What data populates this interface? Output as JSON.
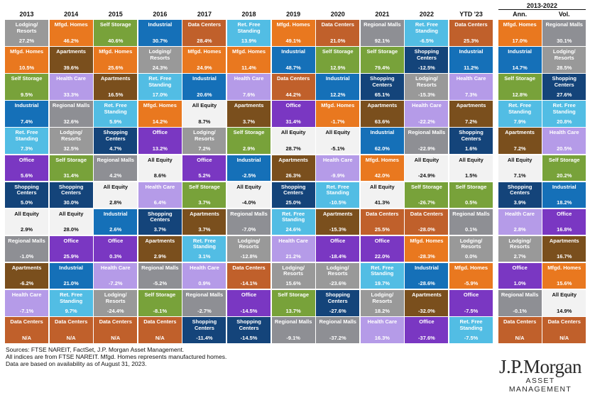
{
  "colors": {
    "Lodging/Resorts": "#1e6fb5",
    "Mfgd. Homes": "#e9781f",
    "Self Storage": "#78a23a",
    "Industrial": "#1570b8",
    "Data Centers": "#c0602b",
    "Ret. Free Standing": "#52bde4",
    "Regional Malls": "#8e8f94",
    "Apartments": "#7a4f1d",
    "Health Care": "#b59be8",
    "Office": "#7a37c2",
    "Shopping Centers": "#14447a",
    "All Equity": "#f2f2f2"
  },
  "chart_data": {
    "type": "table",
    "headers": {
      "columns": [
        "2013",
        "2014",
        "2015",
        "2016",
        "2017",
        "2018",
        "2019",
        "2020",
        "2021",
        "2022",
        "YTD '23",
        "Ann.",
        "Vol."
      ],
      "group_label": "2013-2022"
    },
    "columns": [
      {
        "header": "2013",
        "cells": [
          {
            "name": "Lodging/\nResorts",
            "value": "27.2%"
          },
          {
            "name": "Mfgd. Homes",
            "value": "10.5%"
          },
          {
            "name": "Self Storage",
            "value": "9.5%"
          },
          {
            "name": "Industrial",
            "value": "7.4%"
          },
          {
            "name": "Ret. Free\nStanding",
            "value": "7.3%"
          },
          {
            "name": "Office",
            "value": "5.6%"
          },
          {
            "name": "Shopping\nCenters",
            "value": "5.0%"
          },
          {
            "name": "All Equity",
            "value": "2.9%"
          },
          {
            "name": "Regional Malls",
            "value": "-1.0%"
          },
          {
            "name": "Apartments",
            "value": "-6.2%"
          },
          {
            "name": "Health Care",
            "value": "-7.1%"
          },
          {
            "name": "Data Centers",
            "value": "N/A"
          }
        ]
      },
      {
        "header": "2014",
        "cells": [
          {
            "name": "Mfgd. Homes",
            "value": "46.2%"
          },
          {
            "name": "Apartments",
            "value": "39.6%"
          },
          {
            "name": "Health Care",
            "value": "33.3%"
          },
          {
            "name": "Regional Malls",
            "value": "32.6%"
          },
          {
            "name": "Lodging/\nResorts",
            "value": "32.5%"
          },
          {
            "name": "Self Storage",
            "value": "31.4%"
          },
          {
            "name": "Shopping\nCenters",
            "value": "30.0%"
          },
          {
            "name": "All Equity",
            "value": "28.0%"
          },
          {
            "name": "Office",
            "value": "25.9%"
          },
          {
            "name": "Industrial",
            "value": "21.0%"
          },
          {
            "name": "Ret. Free\nStanding",
            "value": "9.7%"
          },
          {
            "name": "Data Centers",
            "value": "N/A"
          }
        ]
      },
      {
        "header": "2015",
        "cells": [
          {
            "name": "Self Storage",
            "value": "40.6%"
          },
          {
            "name": "Mfgd. Homes",
            "value": "25.6%"
          },
          {
            "name": "Apartments",
            "value": "16.5%"
          },
          {
            "name": "Ret. Free\nStanding",
            "value": "5.9%"
          },
          {
            "name": "Shopping\nCenters",
            "value": "4.7%"
          },
          {
            "name": "Regional Malls",
            "value": "4.2%"
          },
          {
            "name": "All Equity",
            "value": "2.8%"
          },
          {
            "name": "Industrial",
            "value": "2.6%"
          },
          {
            "name": "Office",
            "value": "0.3%"
          },
          {
            "name": "Health Care",
            "value": "-7.2%"
          },
          {
            "name": "Lodging/\nResorts",
            "value": "-24.4%"
          },
          {
            "name": "Data Centers",
            "value": "N/A"
          }
        ]
      },
      {
        "header": "2016",
        "cells": [
          {
            "name": "Industrial",
            "value": "30.7%"
          },
          {
            "name": "Lodging/\nResorts",
            "value": "24.3%"
          },
          {
            "name": "Ret. Free\nStanding",
            "value": "17.0%"
          },
          {
            "name": "Mfgd. Homes",
            "value": "14.2%"
          },
          {
            "name": "Office",
            "value": "13.2%"
          },
          {
            "name": "All Equity",
            "value": "8.6%"
          },
          {
            "name": "Health Care",
            "value": "6.4%"
          },
          {
            "name": "Shopping\nCenters",
            "value": "3.7%"
          },
          {
            "name": "Apartments",
            "value": "2.9%"
          },
          {
            "name": "Regional Malls",
            "value": "-5.2%"
          },
          {
            "name": "Self Storage",
            "value": "-8.1%"
          },
          {
            "name": "Data Centers",
            "value": "N/A"
          }
        ]
      },
      {
        "header": "2017",
        "cells": [
          {
            "name": "Data Centers",
            "value": "28.4%"
          },
          {
            "name": "Mfgd. Homes",
            "value": "24.9%"
          },
          {
            "name": "Industrial",
            "value": "20.6%"
          },
          {
            "name": "All Equity",
            "value": "8.7%"
          },
          {
            "name": "Lodging/\nResorts",
            "value": "7.2%"
          },
          {
            "name": "Office",
            "value": "5.2%"
          },
          {
            "name": "Self Storage",
            "value": "3.7%"
          },
          {
            "name": "Apartments",
            "value": "3.7%"
          },
          {
            "name": "Ret. Free\nStanding",
            "value": "3.1%"
          },
          {
            "name": "Health Care",
            "value": "0.9%"
          },
          {
            "name": "Regional Malls",
            "value": "-2.7%"
          },
          {
            "name": "Shopping\nCenters",
            "value": "-11.4%"
          }
        ]
      },
      {
        "header": "2018",
        "cells": [
          {
            "name": "Ret. Free\nStanding",
            "value": "13.9%"
          },
          {
            "name": "Mfgd. Homes",
            "value": "11.4%"
          },
          {
            "name": "Health Care",
            "value": "7.6%"
          },
          {
            "name": "Apartments",
            "value": "3.7%"
          },
          {
            "name": "Self Storage",
            "value": "2.9%"
          },
          {
            "name": "Industrial",
            "value": "-2.5%"
          },
          {
            "name": "All Equity",
            "value": "-4.0%"
          },
          {
            "name": "Regional Malls",
            "value": "-7.0%"
          },
          {
            "name": "Lodging/\nResorts",
            "value": "-12.8%"
          },
          {
            "name": "Data Centers",
            "value": "-14.1%"
          },
          {
            "name": "Office",
            "value": "-14.5%"
          },
          {
            "name": "Shopping\nCenters",
            "value": "-14.5%"
          }
        ]
      },
      {
        "header": "2019",
        "cells": [
          {
            "name": "Mfgd. Homes",
            "value": "49.1%"
          },
          {
            "name": "Industrial",
            "value": "48.7%"
          },
          {
            "name": "Data Centers",
            "value": "44.2%"
          },
          {
            "name": "Office",
            "value": "31.4%"
          },
          {
            "name": "All Equity",
            "value": "28.7%"
          },
          {
            "name": "Apartments",
            "value": "26.3%"
          },
          {
            "name": "Shopping\nCenters",
            "value": "25.0%"
          },
          {
            "name": "Ret. Free\nStanding",
            "value": "24.6%"
          },
          {
            "name": "Health Care",
            "value": "21.2%"
          },
          {
            "name": "Lodging/\nResorts",
            "value": "15.6%"
          },
          {
            "name": "Self Storage",
            "value": "13.7%"
          },
          {
            "name": "Regional Malls",
            "value": "-9.1%"
          }
        ]
      },
      {
        "header": "2020",
        "cells": [
          {
            "name": "Data Centers",
            "value": "21.0%"
          },
          {
            "name": "Self Storage",
            "value": "12.9%"
          },
          {
            "name": "Industrial",
            "value": "12.2%"
          },
          {
            "name": "Mfgd. Homes",
            "value": "-1.7%"
          },
          {
            "name": "All Equity",
            "value": "-5.1%"
          },
          {
            "name": "Health Care",
            "value": "-9.9%"
          },
          {
            "name": "Ret. Free\nStanding",
            "value": "-10.5%"
          },
          {
            "name": "Apartments",
            "value": "-15.3%"
          },
          {
            "name": "Office",
            "value": "-18.4%"
          },
          {
            "name": "Lodging/\nResorts",
            "value": "-23.6%"
          },
          {
            "name": "Shopping\nCenters",
            "value": "-27.6%"
          },
          {
            "name": "Regional Malls",
            "value": "-37.2%"
          }
        ]
      },
      {
        "header": "2021",
        "cells": [
          {
            "name": "Regional Malls",
            "value": "92.1%"
          },
          {
            "name": "Self Storage",
            "value": "79.4%"
          },
          {
            "name": "Shopping\nCenters",
            "value": "65.1%"
          },
          {
            "name": "Apartments",
            "value": "63.6%"
          },
          {
            "name": "Industrial",
            "value": "62.0%"
          },
          {
            "name": "Mfgd. Homes",
            "value": "42.0%"
          },
          {
            "name": "All Equity",
            "value": "41.3%"
          },
          {
            "name": "Data Centers",
            "value": "25.5%"
          },
          {
            "name": "Office",
            "value": "22.0%"
          },
          {
            "name": "Ret. Free\nStanding",
            "value": "19.7%"
          },
          {
            "name": "Lodging/\nResorts",
            "value": "18.2%"
          },
          {
            "name": "Health Care",
            "value": "16.3%"
          }
        ]
      },
      {
        "header": "2022",
        "cells": [
          {
            "name": "Ret. Free\nStanding",
            "value": "-6.5%"
          },
          {
            "name": "Shopping\nCenters",
            "value": "-12.5%"
          },
          {
            "name": "Lodging/\nResorts",
            "value": "-15.3%"
          },
          {
            "name": "Health Care",
            "value": "-22.2%"
          },
          {
            "name": "Regional Malls",
            "value": "-22.9%"
          },
          {
            "name": "All Equity",
            "value": "-24.9%"
          },
          {
            "name": "Self Storage",
            "value": "-26.7%"
          },
          {
            "name": "Data Centers",
            "value": "-28.0%"
          },
          {
            "name": "Mfgd. Homes",
            "value": "-28.3%"
          },
          {
            "name": "Industrial",
            "value": "-28.6%"
          },
          {
            "name": "Apartments",
            "value": "-32.0%"
          },
          {
            "name": "Office",
            "value": "-37.6%"
          }
        ]
      },
      {
        "header": "YTD '23",
        "cells": [
          {
            "name": "Data Centers",
            "value": "25.3%"
          },
          {
            "name": "Industrial",
            "value": "11.2%"
          },
          {
            "name": "Health Care",
            "value": "7.3%"
          },
          {
            "name": "Apartments",
            "value": "7.2%"
          },
          {
            "name": "Shopping\nCenters",
            "value": "1.6%"
          },
          {
            "name": "All Equity",
            "value": "1.5%"
          },
          {
            "name": "Self Storage",
            "value": "0.5%"
          },
          {
            "name": "Regional Malls",
            "value": "0.1%"
          },
          {
            "name": "Lodging/\nResorts",
            "value": "0.0%"
          },
          {
            "name": "Mfgd. Homes",
            "value": "-5.9%"
          },
          {
            "name": "Office",
            "value": "-7.5%"
          },
          {
            "name": "Ret. Free\nStanding",
            "value": "-7.5%"
          }
        ]
      },
      {
        "header": "Ann.",
        "cells": [
          {
            "name": "Mfgd. Homes",
            "value": "17.0%"
          },
          {
            "name": "Industrial",
            "value": "14.7%"
          },
          {
            "name": "Self Storage",
            "value": "12.8%"
          },
          {
            "name": "Ret. Free\nStanding",
            "value": "7.9%"
          },
          {
            "name": "Apartments",
            "value": "7.2%"
          },
          {
            "name": "All Equity",
            "value": "7.1%"
          },
          {
            "name": "Shopping\nCenters",
            "value": "3.9%"
          },
          {
            "name": "Health Care",
            "value": "2.8%"
          },
          {
            "name": "Lodging/\nResorts",
            "value": "2.7%"
          },
          {
            "name": "Office",
            "value": "1.0%"
          },
          {
            "name": "Regional Malls",
            "value": "-0.1%"
          },
          {
            "name": "Data Centers",
            "value": "N/A"
          }
        ]
      },
      {
        "header": "Vol.",
        "cells": [
          {
            "name": "Regional Malls",
            "value": "30.1%"
          },
          {
            "name": "Lodging/\nResorts",
            "value": "28.5%"
          },
          {
            "name": "Shopping\nCenters",
            "value": "27.6%"
          },
          {
            "name": "Ret. Free\nStanding",
            "value": "20.8%"
          },
          {
            "name": "Health Care",
            "value": "20.5%"
          },
          {
            "name": "Self Storage",
            "value": "20.2%"
          },
          {
            "name": "Industrial",
            "value": "18.2%"
          },
          {
            "name": "Office",
            "value": "16.8%"
          },
          {
            "name": "Apartments",
            "value": "16.7%"
          },
          {
            "name": "Mfgd. Homes",
            "value": "15.6%"
          },
          {
            "name": "All Equity",
            "value": "14.9%"
          },
          {
            "name": "Data Centers",
            "value": "N/A"
          }
        ]
      }
    ]
  },
  "footnotes": [
    "Sources: FTSE NAREIT, FactSet, J.P. Morgan Asset Management.",
    "All indices are from FTSE NAREIT. Mfgd. Homes represents manufactured homes.",
    "Data are based on availability as of August 31, 2023."
  ],
  "logo": {
    "wordmark": "J.P.Morgan",
    "subtitle": "ASSET MANAGEMENT"
  }
}
